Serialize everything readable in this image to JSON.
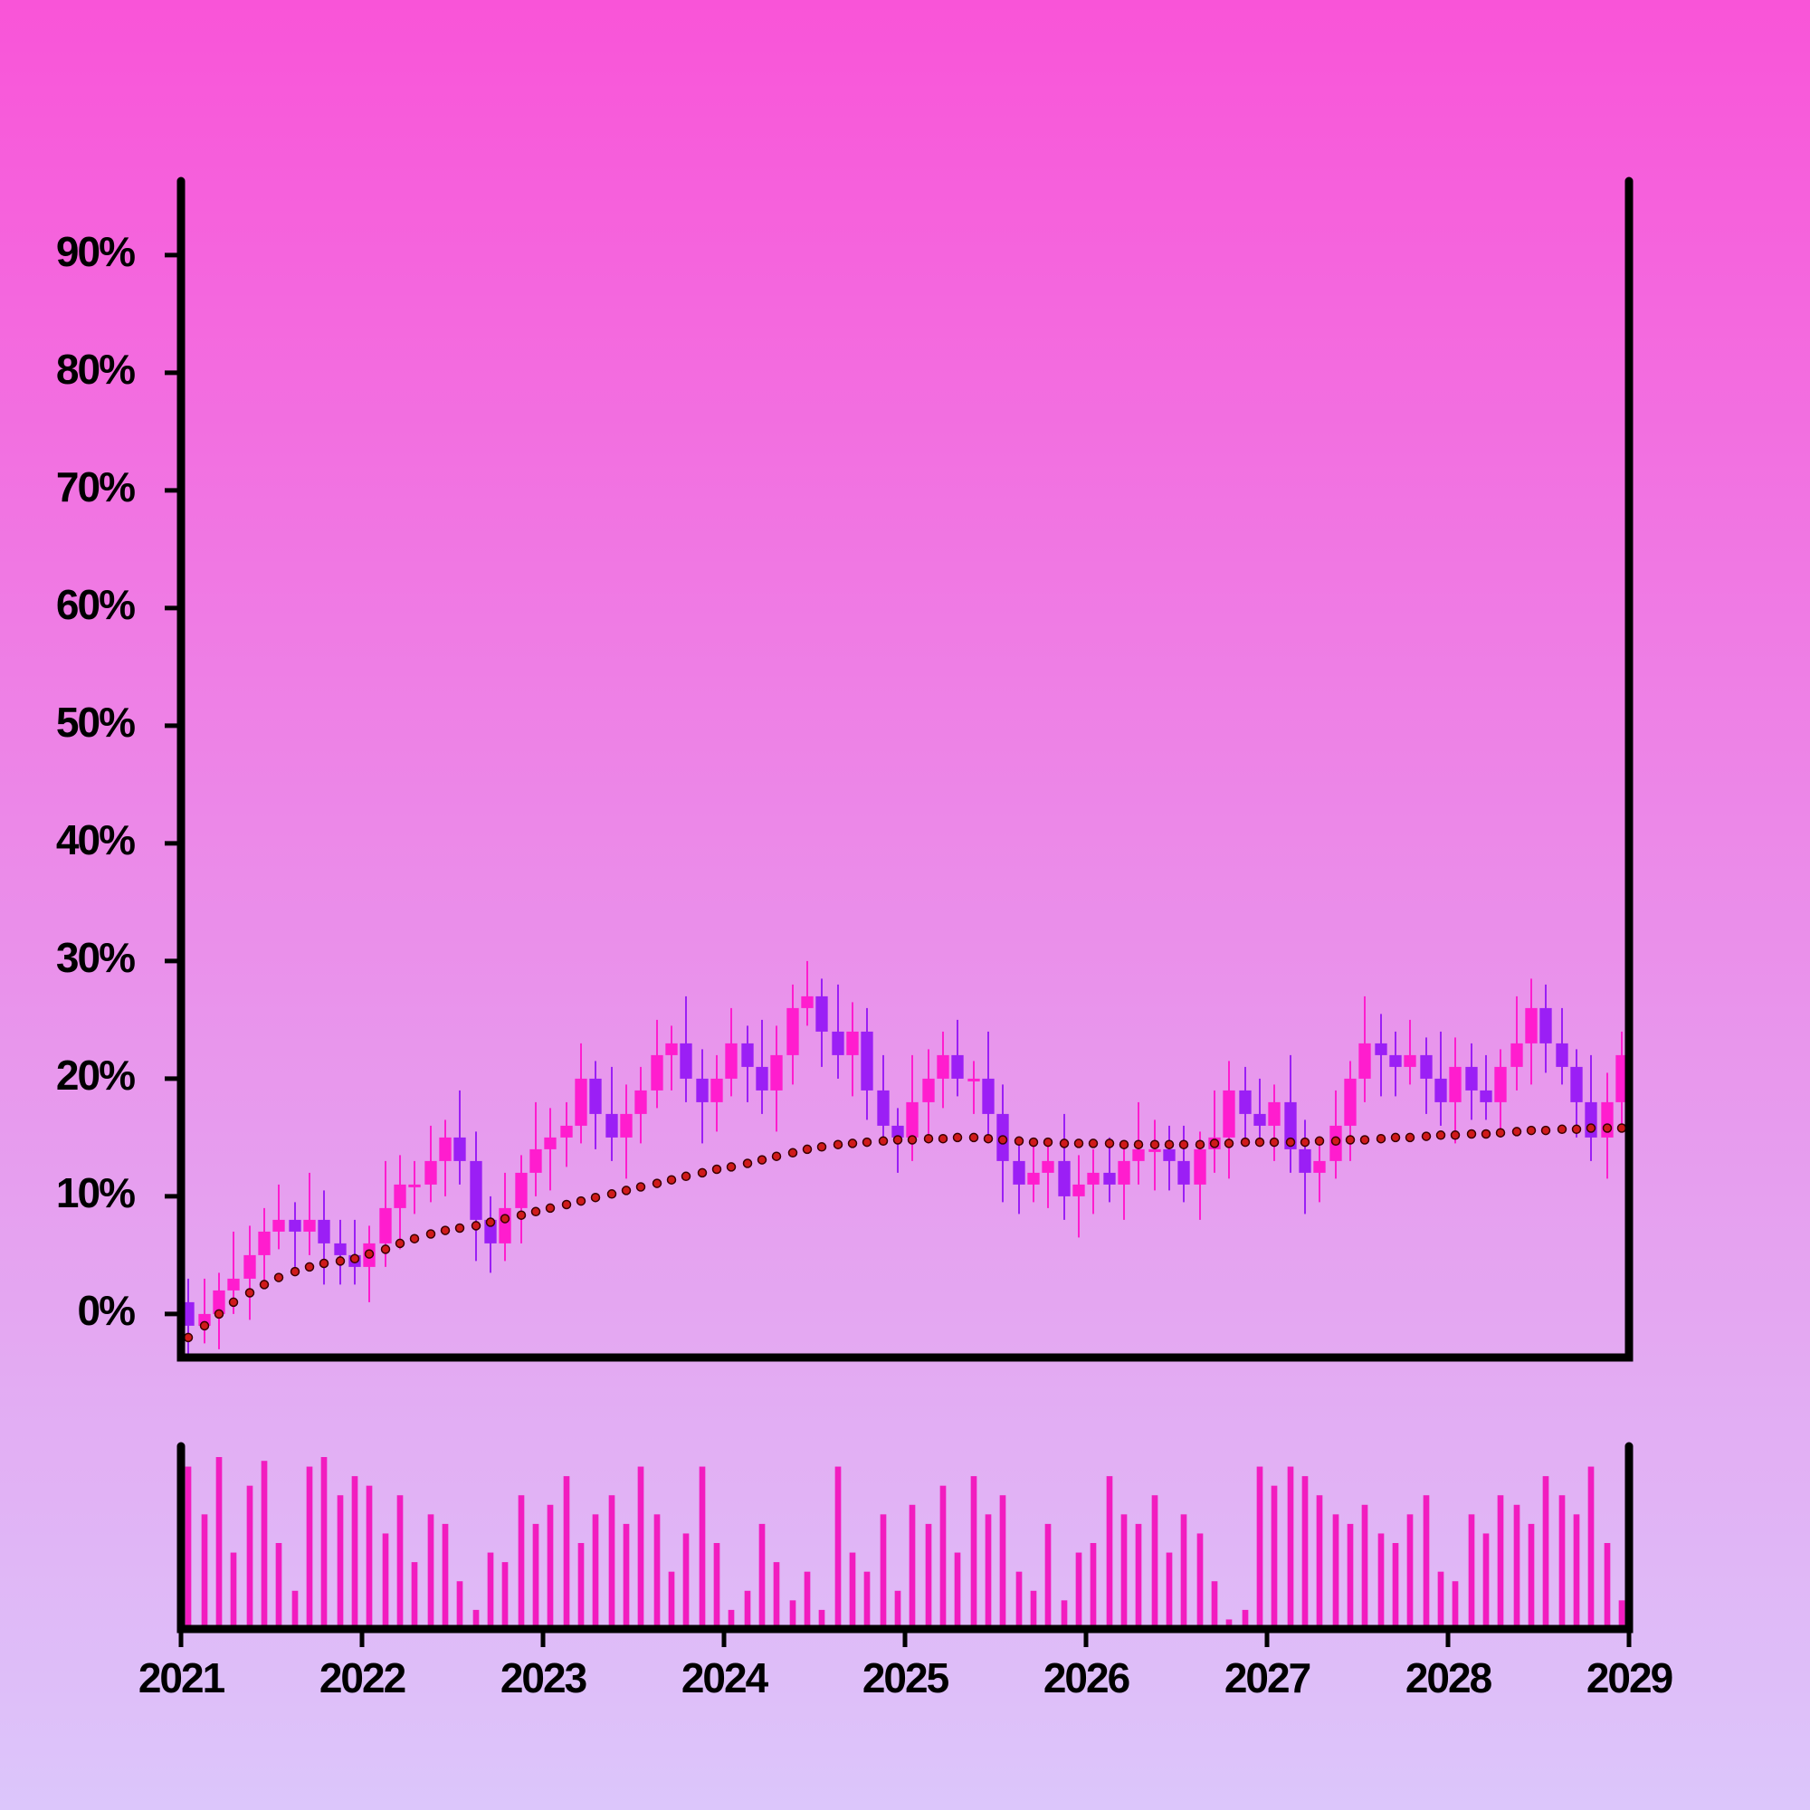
{
  "chart_data": {
    "type": "candlestick",
    "x": [
      2021.04,
      2021.13,
      2021.21,
      2021.29,
      2021.38,
      2021.46,
      2021.54,
      2021.63,
      2021.71,
      2021.79,
      2021.88,
      2021.96,
      2022.04,
      2022.13,
      2022.21,
      2022.29,
      2022.38,
      2022.46,
      2022.54,
      2022.63,
      2022.71,
      2022.79,
      2022.88,
      2022.96,
      2023.04,
      2023.13,
      2023.21,
      2023.29,
      2023.38,
      2023.46,
      2023.54,
      2023.63,
      2023.71,
      2023.79,
      2023.88,
      2023.96,
      2024.04,
      2024.13,
      2024.21,
      2024.29,
      2024.38,
      2024.46,
      2024.54,
      2024.63,
      2024.71,
      2024.79,
      2024.88,
      2024.96,
      2025.04,
      2025.13,
      2025.21,
      2025.29,
      2025.38,
      2025.46,
      2025.54,
      2025.63,
      2025.71,
      2025.79,
      2025.88,
      2025.96,
      2026.04,
      2026.13,
      2026.21,
      2026.29,
      2026.38,
      2026.46,
      2026.54,
      2026.63,
      2026.71,
      2026.79,
      2026.88,
      2026.96,
      2027.04,
      2027.13,
      2027.21,
      2027.29,
      2027.38,
      2027.46,
      2027.54,
      2027.63,
      2027.71,
      2027.79,
      2027.88,
      2027.96,
      2028.04,
      2028.13,
      2028.21,
      2028.29,
      2028.38,
      2028.46,
      2028.54,
      2028.63,
      2028.71,
      2028.79,
      2028.88,
      2028.96
    ],
    "open": [
      1,
      -1,
      0,
      2,
      3,
      5,
      7,
      8,
      7,
      8,
      6,
      5,
      4,
      6,
      9,
      11,
      11,
      13,
      15,
      13,
      8,
      6,
      9,
      12,
      14,
      15,
      16,
      20,
      17,
      15,
      17,
      19,
      22,
      23,
      20,
      18,
      20,
      23,
      21,
      19,
      22,
      26,
      27,
      24,
      22,
      24,
      19,
      16,
      15,
      18,
      20,
      22,
      20,
      20,
      17,
      13,
      11,
      12,
      13,
      10,
      11,
      12,
      11,
      13,
      14,
      14,
      13,
      11,
      14,
      15,
      19,
      17,
      16,
      18,
      14,
      12,
      13,
      16,
      20,
      23,
      22,
      21,
      22,
      20,
      18,
      21,
      19,
      18,
      21,
      23,
      26,
      23,
      21,
      18,
      15,
      18
    ],
    "high": [
      3,
      3,
      3.5,
      7,
      7.5,
      9,
      11,
      9.5,
      12,
      10.5,
      8,
      8,
      7.5,
      13,
      13.5,
      13,
      16,
      16.5,
      19,
      15.5,
      10,
      12,
      13.5,
      18,
      17.5,
      18,
      23,
      21.5,
      21,
      19.5,
      21,
      25,
      24.5,
      27,
      22.5,
      22,
      26,
      24.5,
      25,
      24.5,
      28,
      30,
      28.5,
      28,
      26.5,
      26,
      22,
      17.5,
      22,
      22.5,
      24,
      25,
      21.5,
      24,
      19.5,
      15,
      15,
      14.5,
      17,
      13.5,
      14,
      15,
      14.5,
      18,
      16.5,
      16,
      16,
      15.5,
      19,
      21.5,
      21,
      20,
      19.5,
      22,
      16.5,
      15,
      19,
      21.5,
      27,
      25.5,
      24,
      25,
      23.5,
      24,
      23.5,
      23,
      22,
      22.5,
      27,
      28.5,
      28,
      26,
      22.5,
      22,
      20.5,
      24
    ],
    "low": [
      -3.5,
      -2.5,
      -3,
      0,
      -0.5,
      2.5,
      5.5,
      4,
      5,
      2.5,
      2.5,
      2.5,
      1,
      4,
      5.5,
      8.5,
      9.5,
      10,
      11,
      4.5,
      3.5,
      4.5,
      6,
      10,
      10.5,
      12.5,
      14.5,
      14,
      13,
      11.5,
      14.5,
      17.5,
      19,
      18,
      14.5,
      15.5,
      18.5,
      18,
      17,
      15.5,
      19.5,
      24.5,
      21,
      20,
      18.5,
      16.5,
      14.5,
      12,
      13,
      14.5,
      17.5,
      18.5,
      17,
      15,
      9.5,
      8.5,
      9.5,
      9,
      8,
      6.5,
      8.5,
      9.5,
      8,
      11,
      10.5,
      10.5,
      9.5,
      8,
      12,
      11.5,
      14.5,
      14.5,
      13,
      12,
      8.5,
      9.5,
      11.5,
      13,
      18,
      18.5,
      18.5,
      19.5,
      17,
      16,
      14.5,
      16.5,
      16.5,
      15,
      19,
      19.5,
      20.5,
      19.5,
      15,
      13,
      11.5,
      15.5
    ],
    "close": [
      -1,
      0,
      2,
      3,
      5,
      7,
      8,
      7,
      8,
      6,
      5,
      4,
      6,
      9,
      11,
      11,
      13,
      15,
      13,
      8,
      6,
      9,
      12,
      14,
      15,
      16,
      20,
      17,
      15,
      17,
      19,
      22,
      23,
      20,
      18,
      20,
      23,
      21,
      19,
      22,
      26,
      27,
      24,
      22,
      24,
      19,
      16,
      15,
      18,
      20,
      22,
      20,
      20,
      17,
      13,
      11,
      12,
      13,
      10,
      11,
      12,
      11,
      13,
      14,
      14,
      13,
      11,
      14,
      15,
      19,
      17,
      16,
      18,
      14,
      12,
      13,
      16,
      20,
      23,
      22,
      21,
      22,
      20,
      18,
      21,
      19,
      18,
      21,
      23,
      26,
      23,
      21,
      18,
      15,
      18,
      22
    ],
    "up_color": "#ff1dce",
    "down_color": "#9b1ff5",
    "ma": {
      "color": "#d01a1a",
      "values": [
        -2,
        -1,
        0,
        1,
        1.8,
        2.5,
        3.1,
        3.6,
        4,
        4.3,
        4.5,
        4.7,
        5.1,
        5.5,
        6,
        6.4,
        6.8,
        7.1,
        7.3,
        7.5,
        7.8,
        8.1,
        8.4,
        8.7,
        9,
        9.3,
        9.6,
        9.9,
        10.2,
        10.5,
        10.8,
        11.1,
        11.4,
        11.7,
        12,
        12.3,
        12.5,
        12.8,
        13.1,
        13.4,
        13.7,
        14,
        14.2,
        14.4,
        14.5,
        14.6,
        14.7,
        14.8,
        14.8,
        14.9,
        14.9,
        15,
        15,
        14.9,
        14.8,
        14.7,
        14.6,
        14.6,
        14.5,
        14.5,
        14.5,
        14.5,
        14.4,
        14.4,
        14.4,
        14.4,
        14.4,
        14.4,
        14.5,
        14.5,
        14.6,
        14.6,
        14.6,
        14.6,
        14.6,
        14.7,
        14.7,
        14.8,
        14.8,
        14.9,
        15,
        15,
        15.1,
        15.2,
        15.2,
        15.3,
        15.3,
        15.4,
        15.5,
        15.6,
        15.6,
        15.7,
        15.7,
        15.8,
        15.8,
        15.8
      ]
    },
    "volume": {
      "color": "#f21cbf",
      "values": [
        85,
        60,
        90,
        40,
        75,
        88,
        45,
        20,
        85,
        90,
        70,
        80,
        75,
        50,
        70,
        35,
        60,
        55,
        25,
        10,
        40,
        35,
        70,
        55,
        65,
        80,
        45,
        60,
        70,
        55,
        85,
        60,
        30,
        50,
        85,
        45,
        10,
        20,
        55,
        35,
        15,
        30,
        10,
        85,
        40,
        30,
        60,
        20,
        65,
        55,
        75,
        40,
        80,
        60,
        70,
        30,
        20,
        55,
        15,
        40,
        45,
        80,
        60,
        55,
        70,
        40,
        60,
        50,
        25,
        5,
        10,
        85,
        75,
        85,
        80,
        70,
        60,
        55,
        65,
        50,
        45,
        60,
        70,
        30,
        25,
        60,
        50,
        70,
        65,
        55,
        80,
        70,
        60,
        85,
        45,
        15
      ]
    },
    "xlim": [
      2021,
      2029
    ],
    "xticks": [
      2021,
      2022,
      2023,
      2024,
      2025,
      2026,
      2027,
      2028,
      2029
    ],
    "ylim": [
      -3.7,
      96.3
    ],
    "yticks": [
      {
        "value": 0,
        "label": "0%"
      },
      {
        "value": 10,
        "label": "10%"
      },
      {
        "value": 20,
        "label": "20%"
      },
      {
        "value": 30,
        "label": "30%"
      },
      {
        "value": 40,
        "label": "40%"
      },
      {
        "value": 50,
        "label": "50%"
      },
      {
        "value": 60,
        "label": "60%"
      },
      {
        "value": 70,
        "label": "70%"
      },
      {
        "value": 80,
        "label": "80%"
      },
      {
        "value": 90,
        "label": "90%"
      }
    ]
  }
}
